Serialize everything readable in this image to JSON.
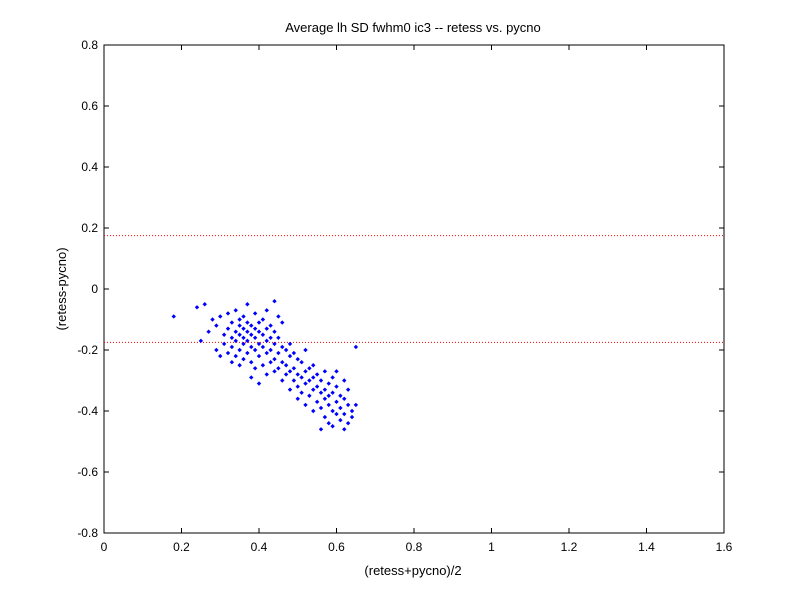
{
  "chart_data": {
    "type": "scatter",
    "title": "Average lh SD fwhm0 ic3 -- retess vs. pycno",
    "xlabel": "(retess+pycno)/2",
    "ylabel": "(retess-pycno)",
    "xlim": [
      0,
      1.6
    ],
    "ylim": [
      -0.8,
      0.8
    ],
    "xticks": [
      0,
      0.2,
      0.4,
      0.6,
      0.8,
      1,
      1.2,
      1.4,
      1.6
    ],
    "xtick_labels": [
      "0",
      "0.2",
      "0.4",
      "0.6",
      "0.8",
      "1",
      "1.2",
      "1.4",
      "1.6"
    ],
    "yticks": [
      -0.8,
      -0.6,
      -0.4,
      -0.2,
      0,
      0.2,
      0.4,
      0.6,
      0.8
    ],
    "ytick_labels": [
      "-0.8",
      "-0.6",
      "-0.4",
      "-0.2",
      "0",
      "0.2",
      "0.4",
      "0.6",
      "0.8"
    ],
    "grid": false,
    "marker_color": "#0000ff",
    "reference_lines": [
      {
        "y": 0.175,
        "style": "dotted",
        "color": "#ff0000"
      },
      {
        "y": -0.175,
        "style": "dotted",
        "color": "#ff0000"
      }
    ],
    "series": [
      {
        "points": [
          [
            0.18,
            -0.09
          ],
          [
            0.24,
            -0.06
          ],
          [
            0.25,
            -0.17
          ],
          [
            0.26,
            -0.05
          ],
          [
            0.27,
            -0.14
          ],
          [
            0.28,
            -0.1
          ],
          [
            0.29,
            -0.12
          ],
          [
            0.29,
            -0.2
          ],
          [
            0.3,
            -0.22
          ],
          [
            0.3,
            -0.09
          ],
          [
            0.31,
            -0.15
          ],
          [
            0.31,
            -0.18
          ],
          [
            0.32,
            -0.08
          ],
          [
            0.32,
            -0.13
          ],
          [
            0.32,
            -0.21
          ],
          [
            0.33,
            -0.11
          ],
          [
            0.33,
            -0.16
          ],
          [
            0.33,
            -0.19
          ],
          [
            0.33,
            -0.24
          ],
          [
            0.34,
            -0.07
          ],
          [
            0.34,
            -0.14
          ],
          [
            0.34,
            -0.17
          ],
          [
            0.34,
            -0.22
          ],
          [
            0.35,
            -0.1
          ],
          [
            0.35,
            -0.12
          ],
          [
            0.35,
            -0.15
          ],
          [
            0.35,
            -0.2
          ],
          [
            0.35,
            -0.25
          ],
          [
            0.36,
            -0.09
          ],
          [
            0.36,
            -0.13
          ],
          [
            0.36,
            -0.16
          ],
          [
            0.36,
            -0.18
          ],
          [
            0.36,
            -0.23
          ],
          [
            0.37,
            -0.11
          ],
          [
            0.37,
            -0.14
          ],
          [
            0.37,
            -0.17
          ],
          [
            0.37,
            -0.21
          ],
          [
            0.37,
            -0.05
          ],
          [
            0.38,
            -0.12
          ],
          [
            0.38,
            -0.15
          ],
          [
            0.38,
            -0.19
          ],
          [
            0.38,
            -0.24
          ],
          [
            0.38,
            -0.29
          ],
          [
            0.39,
            -0.08
          ],
          [
            0.39,
            -0.13
          ],
          [
            0.39,
            -0.16
          ],
          [
            0.39,
            -0.2
          ],
          [
            0.39,
            -0.26
          ],
          [
            0.4,
            -0.11
          ],
          [
            0.4,
            -0.14
          ],
          [
            0.4,
            -0.18
          ],
          [
            0.4,
            -0.22
          ],
          [
            0.4,
            -0.31
          ],
          [
            0.41,
            -0.1
          ],
          [
            0.41,
            -0.15
          ],
          [
            0.41,
            -0.19
          ],
          [
            0.41,
            -0.25
          ],
          [
            0.42,
            -0.07
          ],
          [
            0.42,
            -0.13
          ],
          [
            0.42,
            -0.17
          ],
          [
            0.42,
            -0.21
          ],
          [
            0.42,
            -0.28
          ],
          [
            0.43,
            -0.12
          ],
          [
            0.43,
            -0.16
          ],
          [
            0.43,
            -0.2
          ],
          [
            0.43,
            -0.24
          ],
          [
            0.44,
            -0.04
          ],
          [
            0.44,
            -0.14
          ],
          [
            0.44,
            -0.18
          ],
          [
            0.44,
            -0.23
          ],
          [
            0.44,
            -0.27
          ],
          [
            0.45,
            -0.09
          ],
          [
            0.45,
            -0.16
          ],
          [
            0.45,
            -0.21
          ],
          [
            0.45,
            -0.26
          ],
          [
            0.46,
            -0.11
          ],
          [
            0.46,
            -0.19
          ],
          [
            0.46,
            -0.24
          ],
          [
            0.46,
            -0.3
          ],
          [
            0.47,
            -0.2
          ],
          [
            0.47,
            -0.25
          ],
          [
            0.47,
            -0.28
          ],
          [
            0.48,
            -0.18
          ],
          [
            0.48,
            -0.22
          ],
          [
            0.48,
            -0.27
          ],
          [
            0.48,
            -0.33
          ],
          [
            0.49,
            -0.21
          ],
          [
            0.49,
            -0.26
          ],
          [
            0.49,
            -0.3
          ],
          [
            0.5,
            -0.23
          ],
          [
            0.5,
            -0.28
          ],
          [
            0.5,
            -0.32
          ],
          [
            0.5,
            -0.36
          ],
          [
            0.51,
            -0.24
          ],
          [
            0.51,
            -0.29
          ],
          [
            0.51,
            -0.34
          ],
          [
            0.52,
            -0.2
          ],
          [
            0.52,
            -0.27
          ],
          [
            0.52,
            -0.31
          ],
          [
            0.52,
            -0.38
          ],
          [
            0.53,
            -0.26
          ],
          [
            0.53,
            -0.3
          ],
          [
            0.53,
            -0.35
          ],
          [
            0.54,
            -0.25
          ],
          [
            0.54,
            -0.29
          ],
          [
            0.54,
            -0.33
          ],
          [
            0.54,
            -0.4
          ],
          [
            0.55,
            -0.28
          ],
          [
            0.55,
            -0.32
          ],
          [
            0.55,
            -0.37
          ],
          [
            0.56,
            -0.3
          ],
          [
            0.56,
            -0.34
          ],
          [
            0.56,
            -0.39
          ],
          [
            0.56,
            -0.46
          ],
          [
            0.57,
            -0.27
          ],
          [
            0.57,
            -0.33
          ],
          [
            0.57,
            -0.36
          ],
          [
            0.57,
            -0.42
          ],
          [
            0.58,
            -0.31
          ],
          [
            0.58,
            -0.35
          ],
          [
            0.58,
            -0.38
          ],
          [
            0.58,
            -0.44
          ],
          [
            0.59,
            -0.29
          ],
          [
            0.59,
            -0.34
          ],
          [
            0.59,
            -0.4
          ],
          [
            0.59,
            -0.45
          ],
          [
            0.6,
            -0.32
          ],
          [
            0.6,
            -0.37
          ],
          [
            0.6,
            -0.41
          ],
          [
            0.6,
            -0.27
          ],
          [
            0.61,
            -0.35
          ],
          [
            0.61,
            -0.39
          ],
          [
            0.61,
            -0.43
          ],
          [
            0.62,
            -0.3
          ],
          [
            0.62,
            -0.36
          ],
          [
            0.62,
            -0.41
          ],
          [
            0.62,
            -0.46
          ],
          [
            0.63,
            -0.33
          ],
          [
            0.63,
            -0.38
          ],
          [
            0.63,
            -0.44
          ],
          [
            0.64,
            -0.4
          ],
          [
            0.64,
            -0.42
          ],
          [
            0.65,
            -0.19
          ],
          [
            0.65,
            -0.38
          ]
        ]
      }
    ]
  }
}
